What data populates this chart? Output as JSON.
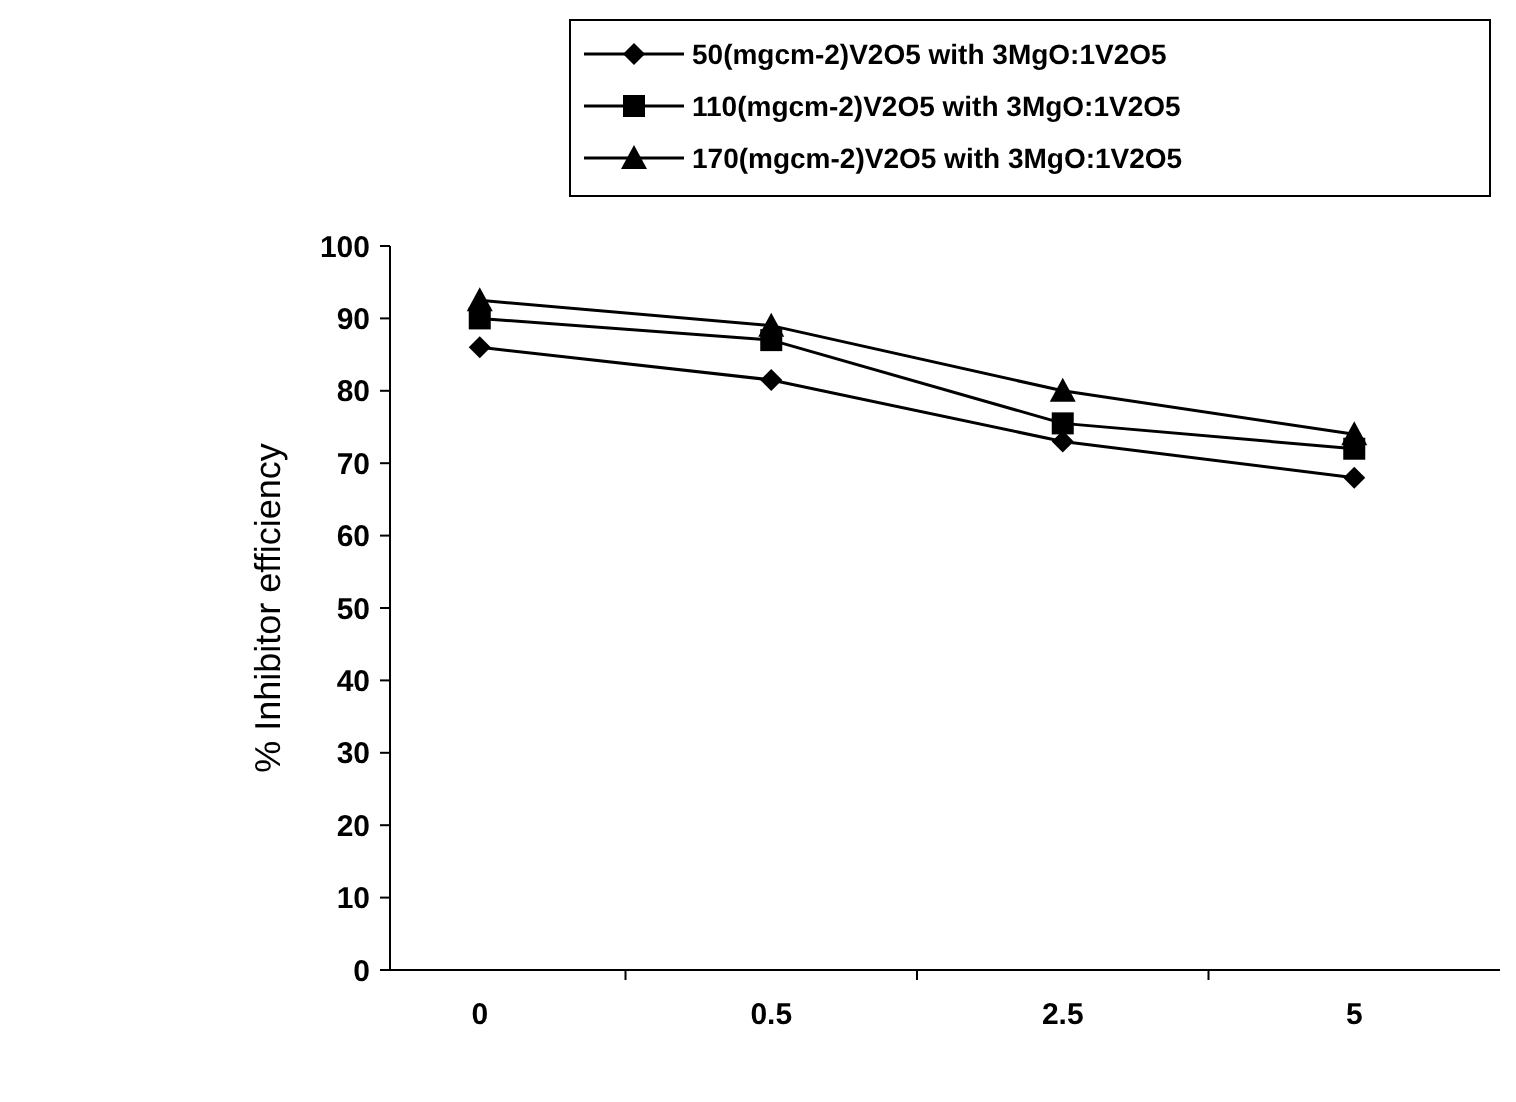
{
  "chart_data": {
    "type": "line",
    "ylabel": "% Inhibitor efficiency",
    "categories": [
      "0",
      "0.5",
      "2.5",
      "5"
    ],
    "ylim": [
      0,
      100
    ],
    "yticks": [
      0,
      10,
      20,
      30,
      40,
      50,
      60,
      70,
      80,
      90,
      100
    ],
    "grid": false,
    "legend": "top",
    "series": [
      {
        "name": "50(mgcm-2)V2O5 with 3MgO:1V2O5",
        "color": "#000000",
        "marker": "diamond",
        "values": [
          86,
          81.5,
          73,
          68
        ]
      },
      {
        "name": "110(mgcm-2)V2O5 with 3MgO:1V2O5",
        "color": "#000000",
        "marker": "square",
        "values": [
          90,
          87,
          75.5,
          72
        ]
      },
      {
        "name": "170(mgcm-2)V2O5 with 3MgO:1V2O5",
        "color": "#000000",
        "marker": "triangle",
        "values": [
          92.5,
          89,
          80,
          74
        ]
      }
    ]
  }
}
